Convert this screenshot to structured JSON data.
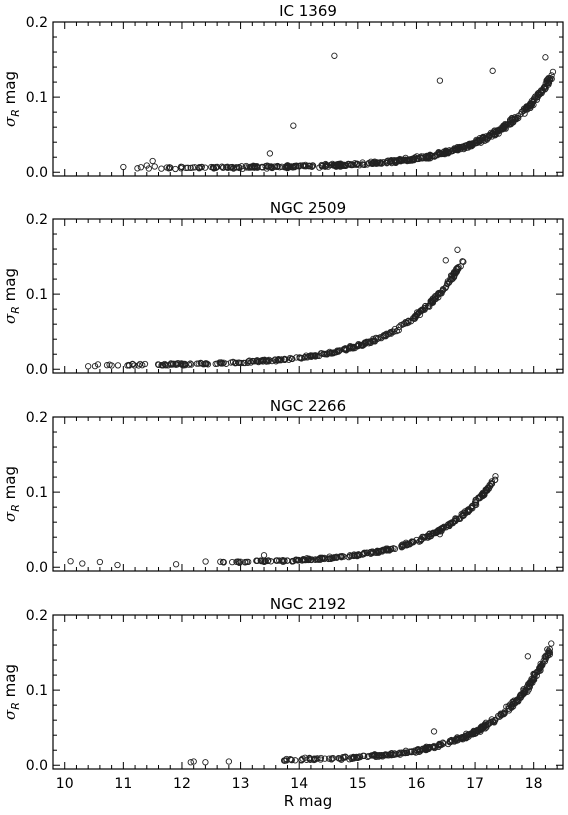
{
  "chart_data": [
    {
      "type": "scatter",
      "title": "IC 1369",
      "ylabel_symbol": "σ",
      "ylabel_sub": "R",
      "ylabel_unit": " mag",
      "xlim": [
        9.8,
        18.5
      ],
      "ylim": [
        -0.005,
        0.2
      ],
      "yticks": [
        0.0,
        0.1,
        0.2
      ],
      "ytick_labels": [
        "0.0",
        "0.1",
        "0.2"
      ],
      "grid": false,
      "curve": {
        "x_from": 11.0,
        "x_to": 18.35,
        "a": 0.006,
        "b": 0.12,
        "c": 0.58,
        "x_ref": 18.3,
        "n": 560,
        "jitter": 0.006
      },
      "points": [
        {
          "x": 11.0,
          "y": 0.007
        },
        {
          "x": 11.4,
          "y": 0.009
        },
        {
          "x": 11.5,
          "y": 0.015
        },
        {
          "x": 11.8,
          "y": 0.006
        },
        {
          "x": 12.0,
          "y": 0.007
        },
        {
          "x": 12.1,
          "y": 0.006
        },
        {
          "x": 12.3,
          "y": 0.006
        },
        {
          "x": 12.5,
          "y": 0.007
        },
        {
          "x": 12.7,
          "y": 0.006
        },
        {
          "x": 13.5,
          "y": 0.025
        },
        {
          "x": 13.9,
          "y": 0.062
        },
        {
          "x": 14.6,
          "y": 0.155
        },
        {
          "x": 16.4,
          "y": 0.122
        },
        {
          "x": 17.3,
          "y": 0.135
        },
        {
          "x": 18.2,
          "y": 0.153
        }
      ]
    },
    {
      "type": "scatter",
      "title": "NGC 2509",
      "ylabel_symbol": "σ",
      "ylabel_sub": "R",
      "ylabel_unit": " mag",
      "xlim": [
        9.8,
        18.5
      ],
      "ylim": [
        -0.005,
        0.2
      ],
      "yticks": [
        0.0,
        0.1,
        0.2
      ],
      "ytick_labels": [
        "0.0",
        "0.1",
        "0.2"
      ],
      "grid": false,
      "curve": {
        "x_from": 10.3,
        "x_to": 16.8,
        "a": 0.005,
        "b": 0.14,
        "c": 0.55,
        "x_ref": 16.8,
        "n": 330,
        "jitter": 0.005
      },
      "points": [
        {
          "x": 10.4,
          "y": 0.004
        },
        {
          "x": 10.8,
          "y": 0.005
        },
        {
          "x": 11.1,
          "y": 0.005
        },
        {
          "x": 11.6,
          "y": 0.006
        },
        {
          "x": 11.9,
          "y": 0.006
        },
        {
          "x": 12.4,
          "y": 0.007
        },
        {
          "x": 16.7,
          "y": 0.159
        },
        {
          "x": 16.5,
          "y": 0.145
        },
        {
          "x": 16.8,
          "y": 0.143
        }
      ]
    },
    {
      "type": "scatter",
      "title": "NGC 2266",
      "ylabel_symbol": "σ",
      "ylabel_sub": "R",
      "ylabel_unit": " mag",
      "xlim": [
        9.8,
        18.5
      ],
      "ylim": [
        -0.005,
        0.2
      ],
      "yticks": [
        0.0,
        0.1,
        0.2
      ],
      "ytick_labels": [
        "0.0",
        "0.1",
        "0.2"
      ],
      "grid": false,
      "curve": {
        "x_from": 12.3,
        "x_to": 17.35,
        "a": 0.006,
        "b": 0.108,
        "c": 0.6,
        "x_ref": 17.3,
        "n": 300,
        "jitter": 0.005
      },
      "points": [
        {
          "x": 10.1,
          "y": 0.008
        },
        {
          "x": 10.3,
          "y": 0.005
        },
        {
          "x": 10.6,
          "y": 0.007
        },
        {
          "x": 10.9,
          "y": 0.003
        },
        {
          "x": 11.9,
          "y": 0.004
        },
        {
          "x": 13.4,
          "y": 0.016
        },
        {
          "x": 15.8,
          "y": 0.03
        },
        {
          "x": 16.4,
          "y": 0.044
        }
      ]
    },
    {
      "type": "scatter",
      "title": "NGC 2192",
      "ylabel_symbol": "σ",
      "ylabel_sub": "R",
      "ylabel_unit": " mag",
      "xlabel": "R mag",
      "xlim": [
        9.8,
        18.5
      ],
      "ylim": [
        -0.005,
        0.2
      ],
      "yticks": [
        0.0,
        0.1,
        0.2
      ],
      "ytick_labels": [
        "0.0",
        "0.1",
        "0.2"
      ],
      "xticks": [
        10,
        11,
        12,
        13,
        14,
        15,
        16,
        17,
        18
      ],
      "xtick_labels": [
        "10",
        "11",
        "12",
        "13",
        "14",
        "15",
        "16",
        "17",
        "18"
      ],
      "grid": false,
      "curve": {
        "x_from": 13.5,
        "x_to": 18.3,
        "a": 0.006,
        "b": 0.11,
        "c": 0.62,
        "x_ref": 18.0,
        "n": 360,
        "jitter": 0.006
      },
      "points": [
        {
          "x": 12.15,
          "y": 0.004
        },
        {
          "x": 12.2,
          "y": 0.005
        },
        {
          "x": 12.4,
          "y": 0.004
        },
        {
          "x": 12.8,
          "y": 0.005
        },
        {
          "x": 14.1,
          "y": 0.01
        },
        {
          "x": 16.3,
          "y": 0.045
        },
        {
          "x": 17.9,
          "y": 0.145
        },
        {
          "x": 18.1,
          "y": 0.13
        },
        {
          "x": 18.3,
          "y": 0.162
        }
      ]
    }
  ]
}
